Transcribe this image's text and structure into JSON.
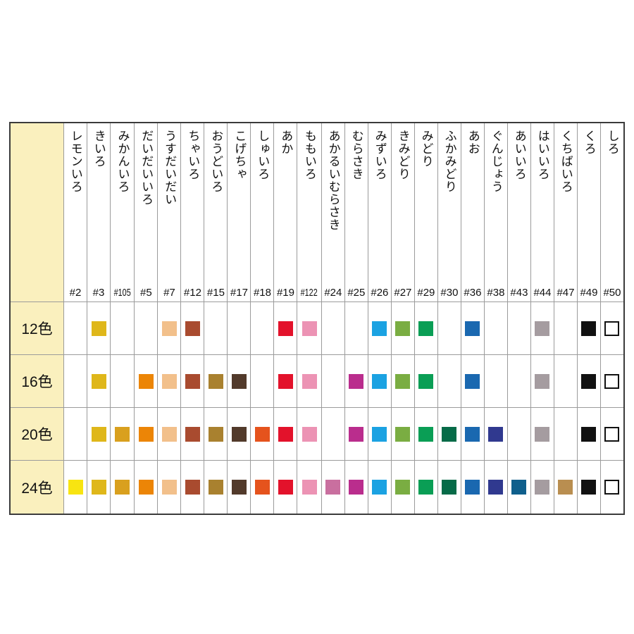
{
  "ui_colors": {
    "label_column_bg": "#FAF0BE",
    "grid_line": "#9B9B9B",
    "outer_border": "#3B3B3B",
    "text": "#111111"
  },
  "chart_data": {
    "type": "table",
    "description_rows_are_pencil_sets": "12色/16色/20色/24色",
    "columns": [
      {
        "name": "レモンいろ",
        "number": "#2",
        "hex": "#F8E411"
      },
      {
        "name": "きいろ",
        "number": "#3",
        "hex": "#DFB71A"
      },
      {
        "name": "みかんいろ",
        "number": "#105",
        "hex": "#D9A01E"
      },
      {
        "name": "だいだいいろ",
        "number": "#5",
        "hex": "#EC8506"
      },
      {
        "name": "うすだいだい",
        "number": "#7",
        "hex": "#F2C08B"
      },
      {
        "name": "ちゃいろ",
        "number": "#12",
        "hex": "#A94B2F"
      },
      {
        "name": "おうどいろ",
        "number": "#15",
        "hex": "#A9812F"
      },
      {
        "name": "こげちゃ",
        "number": "#17",
        "hex": "#523A2B"
      },
      {
        "name": "しゅいろ",
        "number": "#18",
        "hex": "#E5531D"
      },
      {
        "name": "あか",
        "number": "#19",
        "hex": "#E3122B"
      },
      {
        "name": "ももいろ",
        "number": "#122",
        "hex": "#EC93B4"
      },
      {
        "name": "あかるいむらさき",
        "number": "#24",
        "hex": "#C96F9F"
      },
      {
        "name": "むらさき",
        "number": "#25",
        "hex": "#BA2D8D"
      },
      {
        "name": "みずいろ",
        "number": "#26",
        "hex": "#1BA2E2"
      },
      {
        "name": "きみどり",
        "number": "#27",
        "hex": "#7AAD42"
      },
      {
        "name": "みどり",
        "number": "#29",
        "hex": "#0A9E55"
      },
      {
        "name": "ふかみどり",
        "number": "#30",
        "hex": "#066B48"
      },
      {
        "name": "あお",
        "number": "#36",
        "hex": "#1A68B0"
      },
      {
        "name": "ぐんじょう",
        "number": "#38",
        "hex": "#30398F"
      },
      {
        "name": "あいいろ",
        "number": "#43",
        "hex": "#0F5F8C"
      },
      {
        "name": "はいいろ",
        "number": "#44",
        "hex": "#A59CA0"
      },
      {
        "name": "くちばいろ",
        "number": "#47",
        "hex": "#B98E50"
      },
      {
        "name": "くろ",
        "number": "#49",
        "hex": "#111111"
      },
      {
        "name": "しろ",
        "number": "#50",
        "hex": "#FFFFFF"
      }
    ],
    "rows": [
      {
        "label": "12色",
        "included": [
          "#3",
          "#7",
          "#12",
          "#19",
          "#122",
          "#26",
          "#27",
          "#29",
          "#36",
          "#44",
          "#49",
          "#50"
        ]
      },
      {
        "label": "16色",
        "included": [
          "#3",
          "#5",
          "#7",
          "#12",
          "#15",
          "#17",
          "#19",
          "#122",
          "#25",
          "#26",
          "#27",
          "#29",
          "#36",
          "#44",
          "#49",
          "#50"
        ]
      },
      {
        "label": "20色",
        "included": [
          "#3",
          "#105",
          "#5",
          "#7",
          "#12",
          "#15",
          "#17",
          "#18",
          "#19",
          "#122",
          "#25",
          "#26",
          "#27",
          "#29",
          "#30",
          "#36",
          "#38",
          "#44",
          "#49",
          "#50"
        ]
      },
      {
        "label": "24色",
        "included": [
          "#2",
          "#3",
          "#105",
          "#5",
          "#7",
          "#12",
          "#15",
          "#17",
          "#18",
          "#19",
          "#122",
          "#24",
          "#25",
          "#26",
          "#27",
          "#29",
          "#30",
          "#36",
          "#38",
          "#43",
          "#44",
          "#47",
          "#49",
          "#50"
        ]
      }
    ]
  }
}
